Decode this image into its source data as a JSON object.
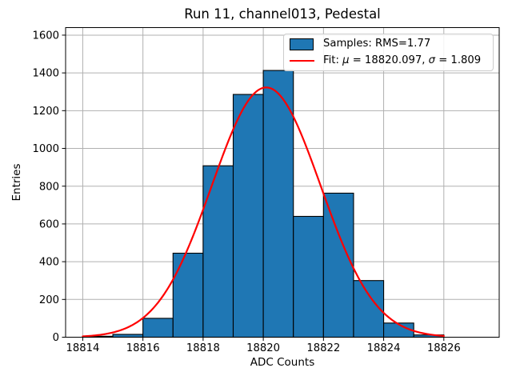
{
  "figure": {
    "title": "Run 11, channel013, Pedestal",
    "xlabel": "ADC Counts",
    "ylabel": "Entries"
  },
  "legend": {
    "samples_label": "Samples: RMS=1.77",
    "fit_prefix": "Fit: ",
    "mu_symbol": "μ",
    "mu_value_part": " = 18820.097, ",
    "sigma_symbol": "σ",
    "sigma_value_part": " = 1.809"
  },
  "chart_data": {
    "type": "bar",
    "subtype": "histogram-with-gaussian-fit",
    "title": "Run 11, channel013, Pedestal",
    "xlabel": "ADC Counts",
    "ylabel": "Entries",
    "bin_edges": [
      18814,
      18815,
      18816,
      18817,
      18818,
      18819,
      18820,
      18821,
      18822,
      18823,
      18824,
      18825,
      18826
    ],
    "bin_counts": [
      5,
      15,
      100,
      445,
      908,
      1286,
      1413,
      640,
      763,
      300,
      75,
      12
    ],
    "x_ticks": [
      18814,
      18816,
      18818,
      18820,
      18822,
      18824,
      18826
    ],
    "y_ticks": [
      0,
      200,
      400,
      600,
      800,
      1000,
      1200,
      1400,
      1600
    ],
    "xlim": [
      18813.43,
      18827.84
    ],
    "ylim": [
      0,
      1640
    ],
    "grid": true,
    "legend_position": "upper right",
    "legend_entries": [
      "Samples: RMS=1.77",
      "Fit: μ = 18820.097, σ = 1.809"
    ],
    "series": [
      {
        "name": "Samples: RMS=1.77",
        "type": "histogram",
        "rms": 1.77,
        "fill": "#1f77b4",
        "edge": "#000000"
      },
      {
        "name": "Fit: μ = 18820.097, σ = 1.809",
        "type": "gaussian-line",
        "mu": 18820.097,
        "sigma": 1.809,
        "amplitude": 1323,
        "x_range": [
          18814,
          18826
        ],
        "color": "#ff0000"
      }
    ],
    "colors": {
      "grid": "#b0b0b0",
      "spine": "#000000",
      "background": "#ffffff",
      "bar_fill": "#1f77b4",
      "bar_edge": "#000000",
      "fit_line": "#ff0000"
    }
  }
}
